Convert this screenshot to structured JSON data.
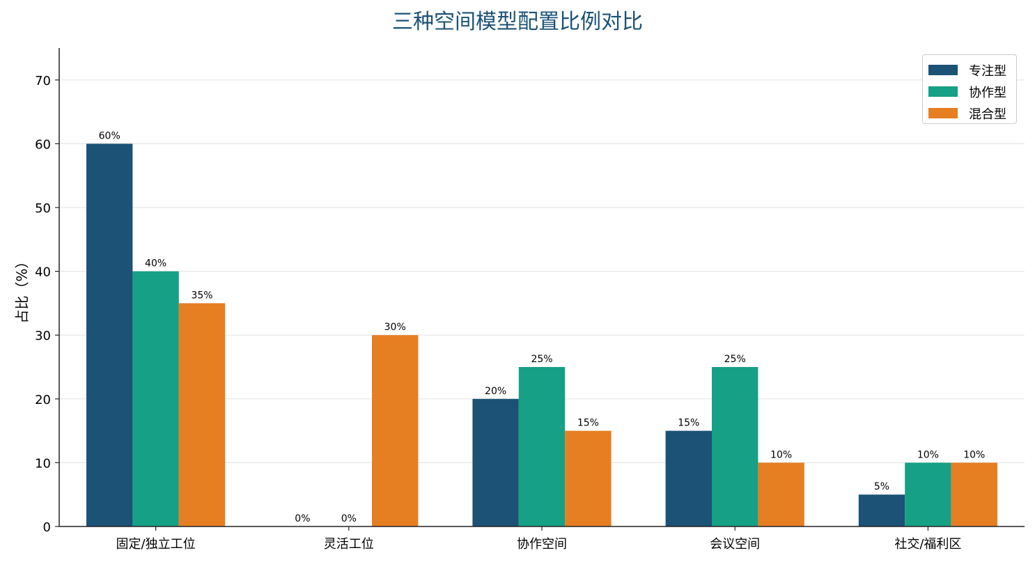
{
  "chart_data": {
    "type": "bar",
    "title": "三种空间模型配置比例对比",
    "xlabel": "",
    "ylabel": "占比（%）",
    "categories": [
      "固定/独立工位",
      "灵活工位",
      "协作空间",
      "会议空间",
      "社交/福利区"
    ],
    "series": [
      {
        "name": "专注型",
        "color": "#1b5276",
        "values": [
          60,
          0,
          20,
          15,
          5
        ],
        "labels": [
          "60%",
          "0%",
          "20%",
          "15%",
          "5%"
        ]
      },
      {
        "name": "协作型",
        "color": "#16a085",
        "values": [
          40,
          0,
          25,
          25,
          10
        ],
        "labels": [
          "40%",
          "0%",
          "25%",
          "25%",
          "10%"
        ]
      },
      {
        "name": "混合型",
        "color": "#e67e22",
        "values": [
          35,
          30,
          15,
          10,
          10
        ],
        "labels": [
          "35%",
          "30%",
          "15%",
          "10%",
          "10%"
        ]
      }
    ],
    "ylim": [
      0,
      75
    ],
    "yticks": [
      0,
      10,
      20,
      30,
      40,
      50,
      60,
      70
    ],
    "grid": "y",
    "legend_position": "top-right"
  }
}
